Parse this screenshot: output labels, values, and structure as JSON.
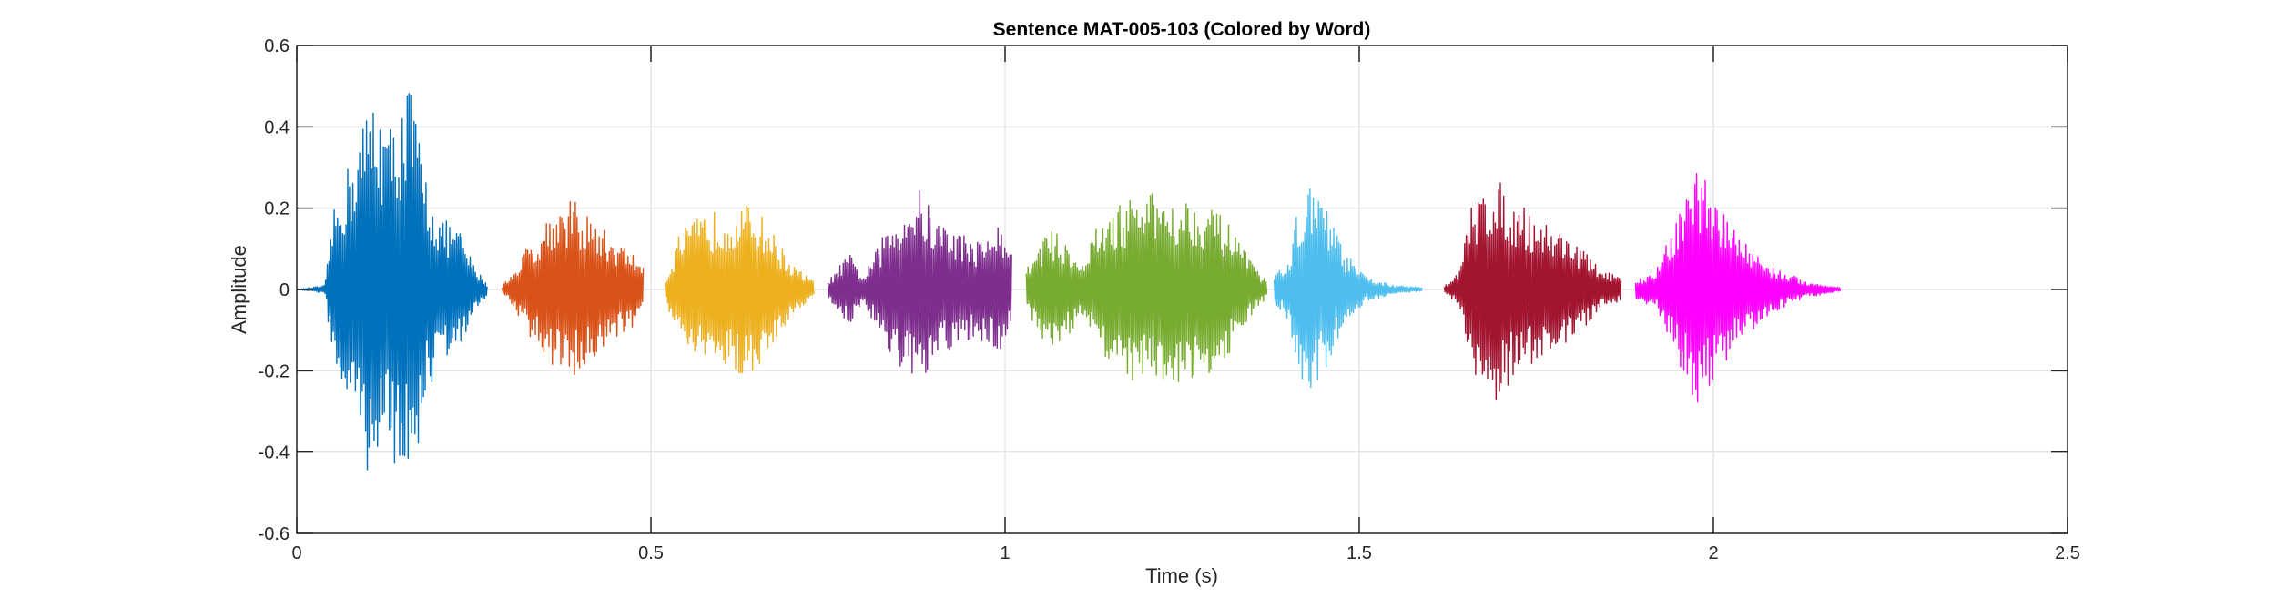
{
  "chart_data": {
    "type": "line",
    "title": "Sentence MAT-005-103 (Colored by Word)",
    "xlabel": "Time (s)",
    "ylabel": "Amplitude",
    "xlim": [
      0,
      2.5
    ],
    "ylim": [
      -0.6,
      0.6
    ],
    "xticks": [
      0,
      0.5,
      1,
      1.5,
      2,
      2.5
    ],
    "xtick_labels": [
      "0",
      "0.5",
      "1",
      "1.5",
      "2",
      "2.5"
    ],
    "yticks": [
      -0.6,
      -0.4,
      -0.2,
      0,
      0.2,
      0.4,
      0.6
    ],
    "ytick_labels": [
      "-0.6",
      "-0.4",
      "-0.2",
      "0",
      "0.2",
      "0.4",
      "0.6"
    ],
    "grid": true,
    "legend": "none",
    "series": [
      {
        "color": "#0072BD",
        "envelope": [
          [
            0,
            0
          ],
          [
            0.04,
            0.01
          ],
          [
            0.05,
            0.18
          ],
          [
            0.08,
            0.35
          ],
          [
            0.11,
            0.5
          ],
          [
            0.13,
            0.4
          ],
          [
            0.16,
            0.52
          ],
          [
            0.18,
            0.3
          ],
          [
            0.2,
            0.18
          ],
          [
            0.23,
            0.15
          ],
          [
            0.25,
            0.06
          ],
          [
            0.27,
            0.01
          ]
        ]
      },
      {
        "color": "#D95319",
        "envelope": [
          [
            0.29,
            0.01
          ],
          [
            0.3,
            0.03
          ],
          [
            0.33,
            0.12
          ],
          [
            0.36,
            0.2
          ],
          [
            0.39,
            0.22
          ],
          [
            0.42,
            0.17
          ],
          [
            0.45,
            0.12
          ],
          [
            0.47,
            0.1
          ],
          [
            0.49,
            0.06
          ]
        ]
      },
      {
        "color": "#EDB120",
        "envelope": [
          [
            0.52,
            0.02
          ],
          [
            0.54,
            0.14
          ],
          [
            0.57,
            0.18
          ],
          [
            0.6,
            0.2
          ],
          [
            0.63,
            0.21
          ],
          [
            0.65,
            0.2
          ],
          [
            0.68,
            0.12
          ],
          [
            0.7,
            0.06
          ],
          [
            0.73,
            0.02
          ]
        ]
      },
      {
        "color": "#7E2F8E",
        "envelope": [
          [
            0.75,
            0.02
          ],
          [
            0.78,
            0.09
          ],
          [
            0.8,
            0.03
          ],
          [
            0.83,
            0.14
          ],
          [
            0.86,
            0.22
          ],
          [
            0.88,
            0.25
          ],
          [
            0.9,
            0.18
          ],
          [
            0.93,
            0.15
          ],
          [
            0.96,
            0.12
          ],
          [
            0.99,
            0.16
          ],
          [
            1.01,
            0.1
          ]
        ]
      },
      {
        "color": "#77AC30",
        "envelope": [
          [
            1.03,
            0.05
          ],
          [
            1.06,
            0.15
          ],
          [
            1.09,
            0.12
          ],
          [
            1.11,
            0.06
          ],
          [
            1.13,
            0.16
          ],
          [
            1.17,
            0.22
          ],
          [
            1.21,
            0.24
          ],
          [
            1.25,
            0.23
          ],
          [
            1.29,
            0.21
          ],
          [
            1.32,
            0.15
          ],
          [
            1.35,
            0.06
          ],
          [
            1.37,
            0.02
          ]
        ]
      },
      {
        "color": "#4DBEEE",
        "envelope": [
          [
            1.38,
            0.03
          ],
          [
            1.4,
            0.08
          ],
          [
            1.42,
            0.26
          ],
          [
            1.44,
            0.24
          ],
          [
            1.46,
            0.18
          ],
          [
            1.48,
            0.09
          ],
          [
            1.51,
            0.03
          ],
          [
            1.55,
            0.01
          ],
          [
            1.59,
            0.005
          ]
        ]
      },
      {
        "color": "#A2142F",
        "envelope": [
          [
            1.62,
            0.01
          ],
          [
            1.64,
            0.04
          ],
          [
            1.66,
            0.22
          ],
          [
            1.69,
            0.28
          ],
          [
            1.72,
            0.22
          ],
          [
            1.76,
            0.17
          ],
          [
            1.8,
            0.13
          ],
          [
            1.84,
            0.05
          ],
          [
            1.87,
            0.03
          ]
        ]
      },
      {
        "color": "#FF00FF",
        "envelope": [
          [
            1.89,
            0.02
          ],
          [
            1.92,
            0.05
          ],
          [
            1.95,
            0.18
          ],
          [
            1.98,
            0.31
          ],
          [
            2.0,
            0.22
          ],
          [
            2.04,
            0.13
          ],
          [
            2.08,
            0.06
          ],
          [
            2.13,
            0.02
          ],
          [
            2.18,
            0.005
          ]
        ]
      }
    ]
  }
}
